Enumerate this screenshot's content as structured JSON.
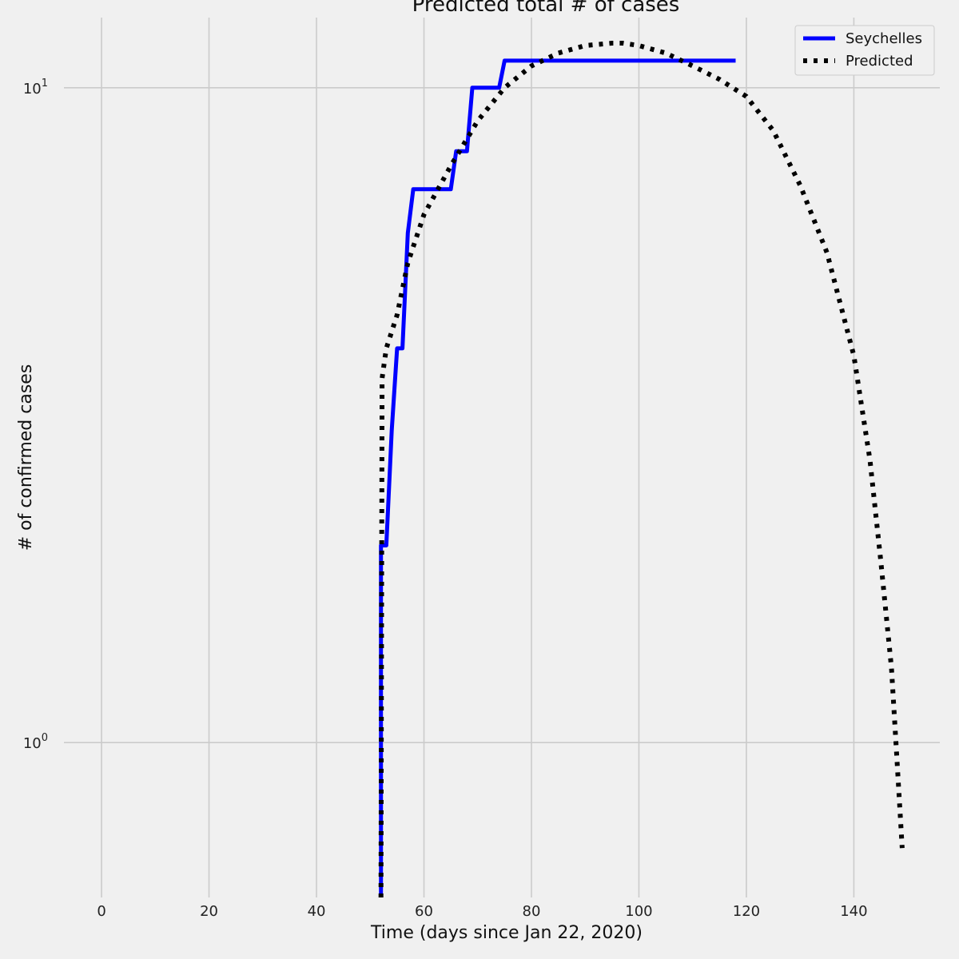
{
  "chart_data": {
    "type": "line",
    "title": "Predicted total # of cases",
    "xlabel": "Time (days since Jan 22, 2020)",
    "ylabel": "# of confirmed cases",
    "xlim": [
      -7,
      156
    ],
    "ylim": [
      0.58,
      12.8
    ],
    "yscale": "log",
    "x_ticks": [
      0,
      20,
      40,
      60,
      80,
      100,
      120,
      140
    ],
    "y_ticks": [
      {
        "value": 1,
        "base": "10",
        "exp": "0"
      },
      {
        "value": 10,
        "base": "10",
        "exp": "1"
      }
    ],
    "grid": true,
    "legend_position": "top-right",
    "series": [
      {
        "name": "Seychelles",
        "color": "#0000ff",
        "style": "solid",
        "x": [
          52,
          52,
          53,
          54,
          55,
          56,
          57,
          58,
          59,
          60,
          61,
          62,
          63,
          64,
          65,
          66,
          67,
          68,
          69,
          70,
          71,
          72,
          73,
          74,
          75,
          76,
          80,
          90,
          100,
          110,
          118
        ],
        "y": [
          0.58,
          2,
          2,
          3,
          4,
          4,
          6,
          7,
          7,
          7,
          7,
          7,
          7,
          7,
          7,
          8,
          8,
          8,
          10,
          10,
          10,
          10,
          10,
          10,
          11,
          11,
          11,
          11,
          11,
          11,
          11
        ]
      },
      {
        "name": "Predicted",
        "color": "#000000",
        "style": "dotted",
        "x": [
          52,
          52.2,
          53,
          55,
          57,
          60,
          65,
          70,
          75,
          80,
          85,
          90,
          95,
          97,
          100,
          105,
          110,
          115,
          120,
          125,
          130,
          135,
          140,
          143,
          145,
          147,
          148,
          149
        ],
        "y": [
          0.58,
          3.6,
          4.0,
          4.5,
          5.4,
          6.4,
          7.6,
          8.9,
          10.0,
          10.8,
          11.3,
          11.6,
          11.7,
          11.7,
          11.6,
          11.3,
          10.8,
          10.3,
          9.7,
          8.6,
          7.1,
          5.6,
          3.9,
          2.7,
          1.9,
          1.3,
          0.95,
          0.69
        ]
      }
    ]
  }
}
